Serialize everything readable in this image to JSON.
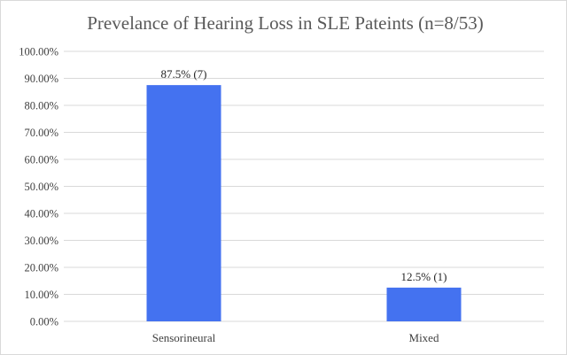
{
  "chart_data": {
    "type": "bar",
    "title": "Prevelance of Hearing Loss in SLE Pateints (n=8/53)",
    "categories": [
      "Sensorineural",
      "Mixed"
    ],
    "values": [
      87.5,
      12.5
    ],
    "data_labels": [
      "87.5% (7)",
      "12.5% (1)"
    ],
    "y_ticks": [
      "0.00%",
      "10.00%",
      "20.00%",
      "30.00%",
      "40.00%",
      "50.00%",
      "60.00%",
      "70.00%",
      "80.00%",
      "90.00%",
      "100.00%"
    ],
    "ylim": [
      0,
      100
    ],
    "grid": true,
    "bar_color": "#4472f0",
    "grid_color": "#d9d9d9",
    "xlabel": "",
    "ylabel": ""
  }
}
